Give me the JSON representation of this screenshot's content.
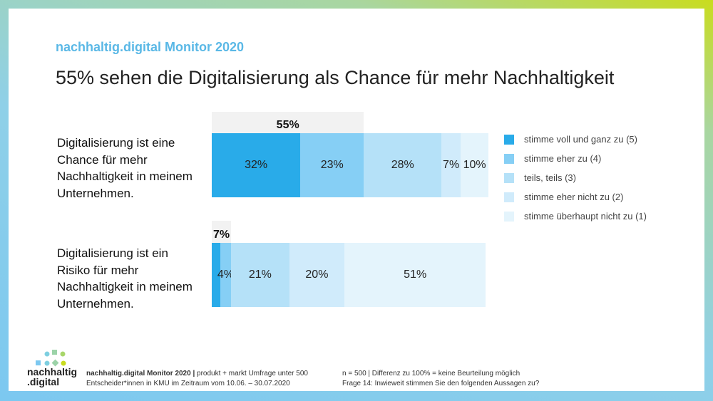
{
  "header": {
    "kicker": "nachhaltig.digital Monitor 2020",
    "title": "55% sehen die Digitalisierung als Chance für mehr Nachhaltigkeit"
  },
  "chart_data": {
    "type": "bar",
    "orientation": "horizontal",
    "stacked": true,
    "categories": [
      "Digitalisierung ist eine Chance für mehr Nachhaltigkeit in meinem Unternehmen.",
      "Digitalisierung ist ein Risiko für mehr Nachhaltigkeit in meinem Unternehmen."
    ],
    "series": [
      {
        "name": "stimme voll und ganz zu (5)",
        "color": "#29abe9",
        "values": [
          32,
          3
        ],
        "labels": [
          "32%",
          ""
        ]
      },
      {
        "name": "stimme eher zu (4)",
        "color": "#86cff5",
        "values": [
          23,
          4
        ],
        "labels": [
          "23%",
          "4%"
        ]
      },
      {
        "name": "teils, teils (3)",
        "color": "#b5e1f8",
        "values": [
          28,
          21
        ],
        "labels": [
          "28%",
          "21%"
        ]
      },
      {
        "name": "stimme eher nicht zu (2)",
        "color": "#d0ebfb",
        "values": [
          7,
          20
        ],
        "labels": [
          "7%",
          "20%"
        ]
      },
      {
        "name": "stimme überhaupt nicht zu (1)",
        "color": "#e4f4fc",
        "values": [
          10,
          51
        ],
        "labels": [
          "10%",
          "51%"
        ]
      }
    ],
    "agreement_totals": [
      "55%",
      "7%"
    ],
    "xlim": [
      0,
      100
    ],
    "legend": "right"
  },
  "footer": {
    "logo_text": [
      "nachhaltig",
      ".digital"
    ],
    "source_bold": "nachhaltig.digital Monitor 2020 |",
    "source_rest": " produkt + markt Umfrage unter 500",
    "source_line2": "Entscheider*innen in KMU im Zeitraum vom 10.06. – 30.07.2020",
    "note1": "n = 500 | Differenz zu 100% = keine Beurteilung möglich",
    "note2": "Frage 14: Inwieweit stimmen Sie den folgenden Aussagen zu?"
  }
}
